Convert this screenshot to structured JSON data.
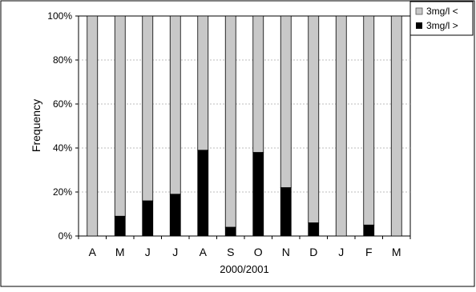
{
  "chart_data": {
    "type": "bar",
    "stacked": true,
    "normalized": true,
    "categories": [
      "A",
      "M",
      "J",
      "J",
      "A",
      "S",
      "O",
      "N",
      "D",
      "J",
      "F",
      "M"
    ],
    "series": [
      {
        "name": "3mg/l <",
        "color": "#c8c8c8",
        "values": [
          100,
          91,
          84,
          81,
          61,
          96,
          62,
          78,
          94,
          100,
          95,
          100
        ]
      },
      {
        "name": "3mg/l >",
        "color": "#000000",
        "values": [
          0,
          9,
          16,
          19,
          39,
          4,
          38,
          22,
          6,
          0,
          5,
          0
        ]
      }
    ],
    "xlabel": "2000/2001",
    "ylabel": "Frequency",
    "ylim": [
      0,
      100
    ],
    "yticks": [
      "0%",
      "20%",
      "40%",
      "60%",
      "80%",
      "100%"
    ],
    "grid": true,
    "legend": "top-right"
  }
}
